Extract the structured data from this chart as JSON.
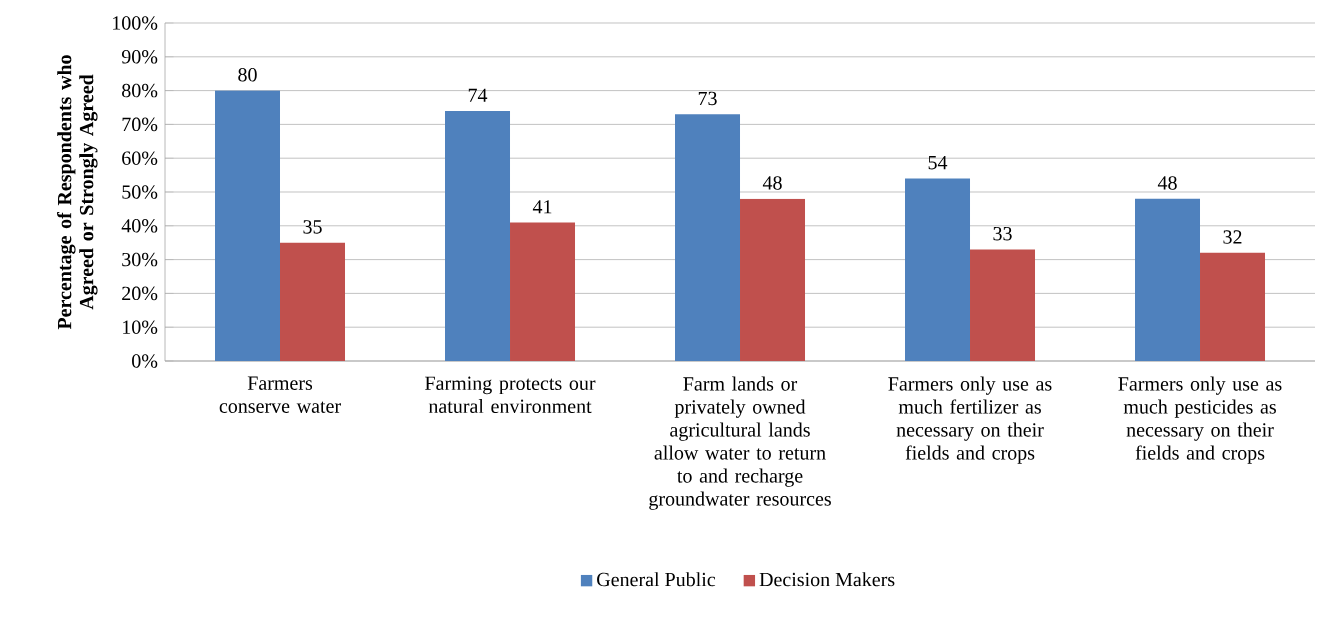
{
  "chart_data": {
    "type": "bar",
    "ylabel": "Percentage of Respondents who Agreed or Strongly Agreed",
    "categories": [
      "Farmers conserve water",
      "Farming protects our natural environment",
      "Farm lands or privately owned agricultural lands allow water to return to and recharge groundwater resources",
      "Farmers only use as much fertilizer as necessary on their fields and crops",
      "Farmers only use as much pesticides as necessary on their fields and crops"
    ],
    "series": [
      {
        "name": "General Public",
        "color": "#4f81bd",
        "values": [
          80,
          74,
          73,
          54,
          48
        ]
      },
      {
        "name": "Decision Makers",
        "color": "#c0504d",
        "values": [
          35,
          41,
          48,
          33,
          32
        ]
      }
    ],
    "ylim": [
      0,
      100
    ],
    "yticks": [
      {
        "value": 0,
        "label": "0%"
      },
      {
        "value": 10,
        "label": "10%"
      },
      {
        "value": 20,
        "label": "20%"
      },
      {
        "value": 30,
        "label": "30%"
      },
      {
        "value": 40,
        "label": "40%"
      },
      {
        "value": 50,
        "label": "50%"
      },
      {
        "value": 60,
        "label": "60%"
      },
      {
        "value": 70,
        "label": "70%"
      },
      {
        "value": 80,
        "label": "80%"
      },
      {
        "value": 90,
        "label": "90%"
      },
      {
        "value": 100,
        "label": "100%"
      }
    ],
    "grid": "y",
    "legend": "bottom",
    "data_labels": true
  }
}
